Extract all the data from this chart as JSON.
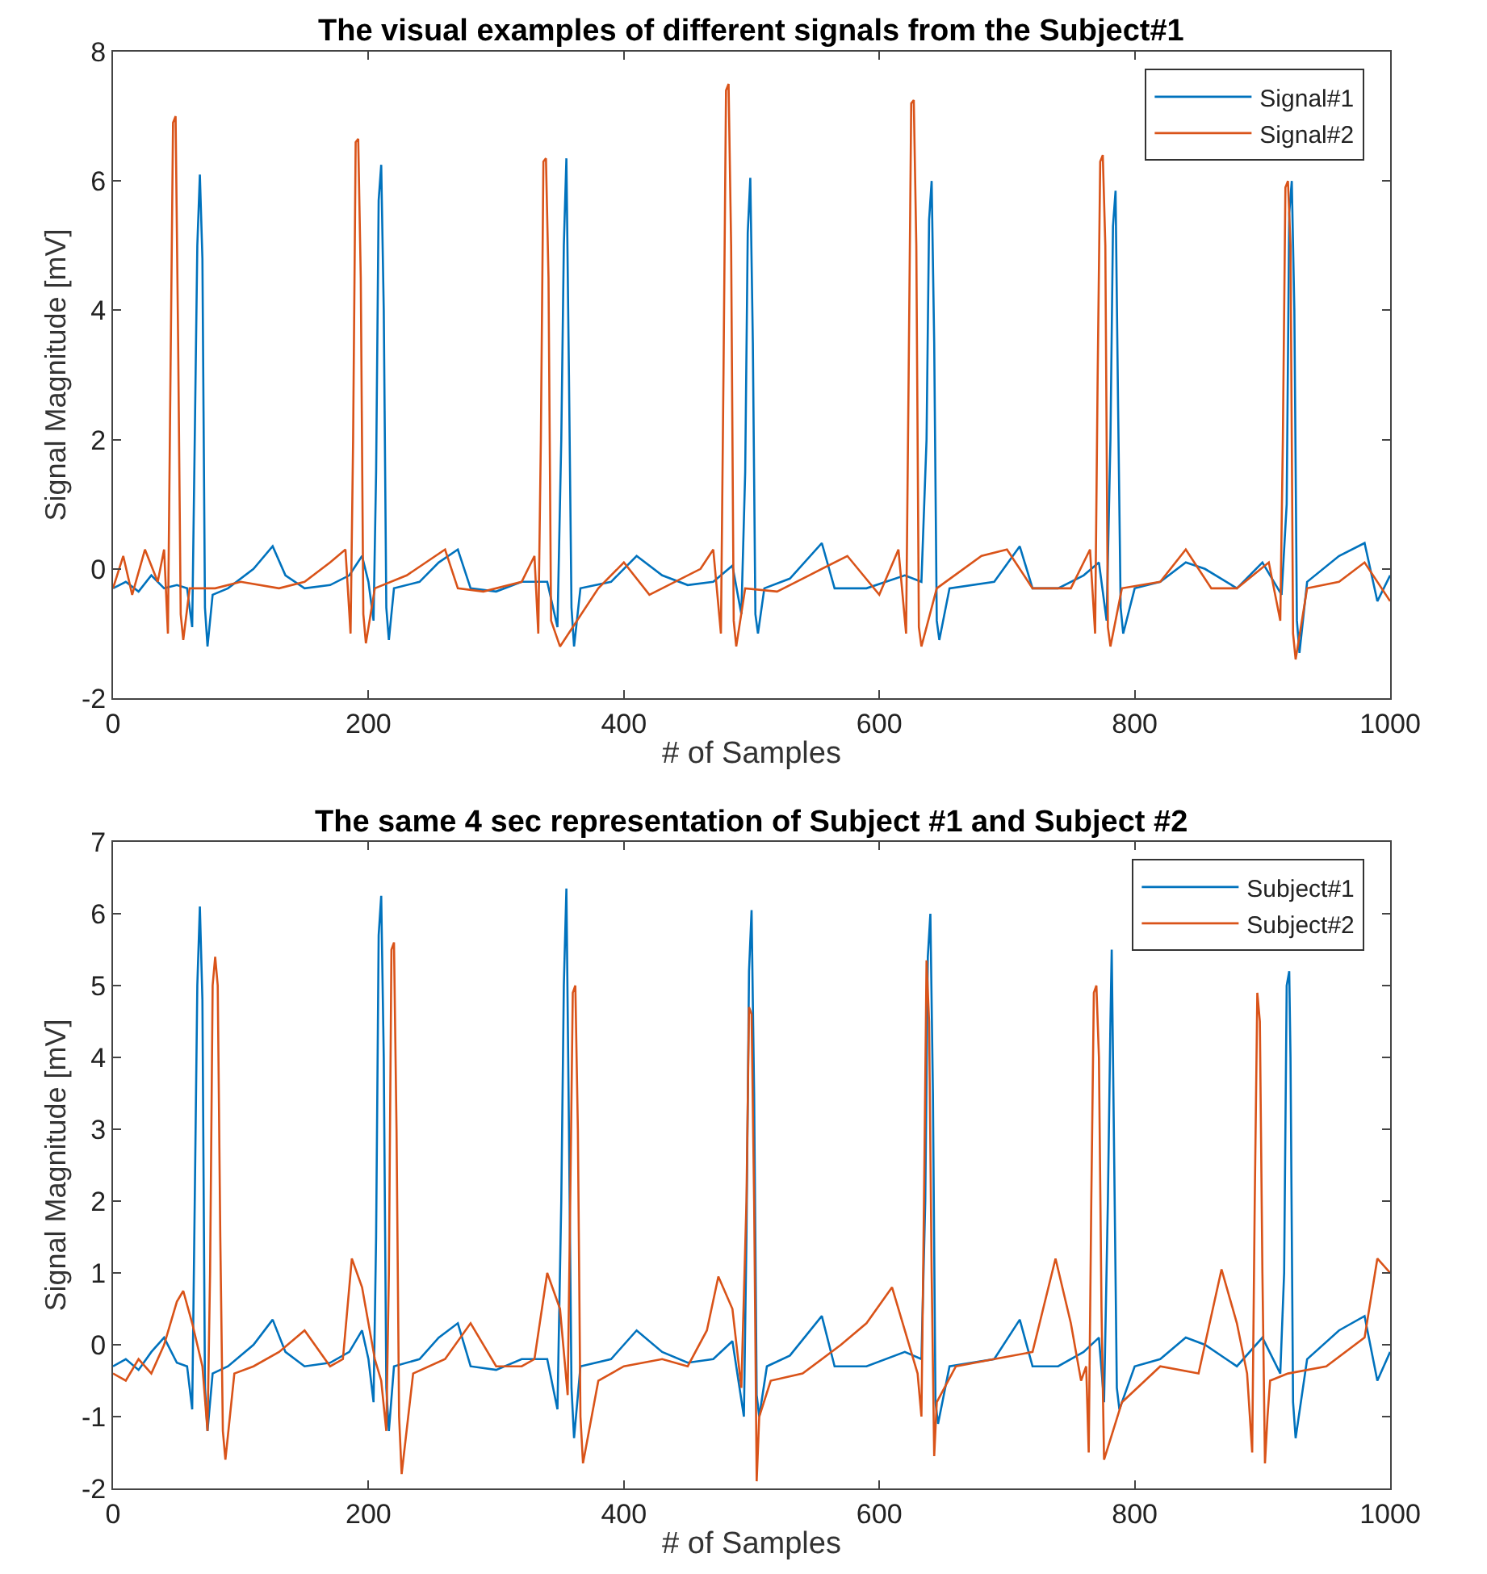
{
  "chart_data": [
    {
      "type": "line",
      "title": "The visual examples of different signals from the Subject#1",
      "xlabel": "# of Samples",
      "ylabel": "Signal Magnitude [mV]",
      "xlim": [
        0,
        1000
      ],
      "xticks": [
        0,
        200,
        400,
        600,
        800,
        1000
      ],
      "ylim": [
        -2,
        8
      ],
      "yticks": [
        -2,
        0,
        2,
        4,
        6,
        8
      ],
      "legend": "top right",
      "marker": "none",
      "line_style": "solid",
      "series": [
        {
          "name": "Signal#1",
          "color": "#0072bd",
          "x": [
            0,
            10,
            20,
            30,
            40,
            50,
            58,
            62,
            64,
            66,
            68,
            70,
            72,
            74,
            78,
            90,
            110,
            125,
            135,
            150,
            170,
            185,
            195,
            200,
            204,
            206,
            208,
            210,
            212,
            214,
            216,
            220,
            240,
            255,
            270,
            280,
            300,
            320,
            340,
            348,
            351,
            353,
            355,
            357,
            359,
            361,
            366,
            390,
            410,
            430,
            450,
            470,
            485,
            492,
            495,
            497,
            499,
            501,
            503,
            505,
            510,
            530,
            555,
            565,
            590,
            620,
            633,
            637,
            639,
            641,
            643,
            645,
            647,
            655,
            690,
            710,
            720,
            740,
            760,
            772,
            778,
            781,
            783,
            785,
            787,
            789,
            791,
            800,
            820,
            840,
            855,
            880,
            900,
            915,
            919,
            921,
            923,
            925,
            927,
            929,
            935,
            960,
            980,
            990,
            1000
          ],
          "values": [
            -0.3,
            -0.2,
            -0.35,
            -0.1,
            -0.3,
            -0.25,
            -0.3,
            -0.9,
            2,
            5,
            6.1,
            4.8,
            -0.6,
            -1.2,
            -0.4,
            -0.3,
            0.0,
            0.35,
            -0.1,
            -0.3,
            -0.25,
            -0.1,
            0.2,
            -0.2,
            -0.8,
            1.5,
            5.7,
            6.25,
            4.0,
            -0.6,
            -1.1,
            -0.3,
            -0.2,
            0.1,
            0.3,
            -0.3,
            -0.35,
            -0.2,
            -0.2,
            -0.9,
            2,
            5,
            6.35,
            3.0,
            -0.6,
            -1.2,
            -0.3,
            -0.2,
            0.2,
            -0.1,
            -0.25,
            -0.2,
            0.05,
            -0.7,
            1.5,
            5.2,
            6.05,
            3.5,
            -0.7,
            -1.0,
            -0.3,
            -0.15,
            0.4,
            -0.3,
            -0.3,
            -0.1,
            -0.2,
            2,
            5.4,
            6.0,
            3.5,
            -0.8,
            -1.1,
            -0.3,
            -0.2,
            0.35,
            -0.3,
            -0.3,
            -0.1,
            0.1,
            -0.8,
            2,
            5.3,
            5.85,
            2.5,
            -0.6,
            -1.0,
            -0.3,
            -0.2,
            0.1,
            0.0,
            -0.3,
            0.1,
            -0.4,
            1,
            5.5,
            6.0,
            4.0,
            -0.8,
            -1.3,
            -0.2,
            0.2,
            0.4,
            -0.5,
            -0.1
          ]
        },
        {
          "name": "Signal#2",
          "color": "#d95319",
          "x": [
            0,
            8,
            15,
            25,
            35,
            40,
            43,
            45,
            47,
            49,
            51,
            53,
            55,
            60,
            80,
            100,
            130,
            150,
            170,
            182,
            186,
            188,
            190,
            192,
            194,
            196,
            198,
            205,
            230,
            260,
            270,
            290,
            320,
            330,
            333,
            335,
            337,
            339,
            341,
            343,
            350,
            380,
            400,
            420,
            460,
            470,
            476,
            478,
            480,
            482,
            484,
            486,
            488,
            495,
            520,
            545,
            575,
            600,
            615,
            621,
            623,
            625,
            627,
            629,
            631,
            633,
            645,
            680,
            700,
            720,
            750,
            765,
            769,
            771,
            773,
            775,
            777,
            779,
            781,
            790,
            820,
            840,
            860,
            880,
            905,
            914,
            916,
            918,
            920,
            922,
            924,
            926,
            935,
            960,
            980,
            1000
          ],
          "values": [
            -0.3,
            0.2,
            -0.4,
            0.3,
            -0.2,
            0.3,
            -1.0,
            3,
            6.9,
            7.0,
            3.5,
            -0.7,
            -1.1,
            -0.3,
            -0.3,
            -0.2,
            -0.3,
            -0.2,
            0.1,
            0.3,
            -1.0,
            2,
            6.6,
            6.65,
            4.5,
            -0.7,
            -1.15,
            -0.3,
            -0.1,
            0.3,
            -0.3,
            -0.35,
            -0.2,
            0.2,
            -1.0,
            2,
            6.3,
            6.35,
            4.5,
            -0.8,
            -1.2,
            -0.3,
            0.1,
            -0.4,
            0.0,
            0.3,
            -1.0,
            3,
            7.4,
            7.5,
            5.0,
            -0.8,
            -1.2,
            -0.3,
            -0.35,
            -0.1,
            0.2,
            -0.4,
            0.3,
            -1.0,
            3,
            7.2,
            7.25,
            5,
            -0.9,
            -1.2,
            -0.3,
            0.2,
            0.3,
            -0.3,
            -0.3,
            0.3,
            -1.0,
            3,
            6.3,
            6.4,
            5,
            -0.9,
            -1.2,
            -0.3,
            -0.2,
            0.3,
            -0.3,
            -0.3,
            0.1,
            -0.8,
            2,
            5.9,
            6.0,
            5,
            -1.0,
            -1.4,
            -0.3,
            -0.2,
            0.1,
            -0.5
          ]
        }
      ]
    },
    {
      "type": "line",
      "title": "The same 4 sec representation of Subject #1 and Subject #2",
      "xlabel": "# of Samples",
      "ylabel": "Signal Magnitude [mV]",
      "xlim": [
        0,
        1000
      ],
      "xticks": [
        0,
        200,
        400,
        600,
        800,
        1000
      ],
      "ylim": [
        -2,
        7
      ],
      "yticks": [
        -2,
        -1,
        0,
        1,
        2,
        3,
        4,
        5,
        6,
        7
      ],
      "legend": "top right",
      "marker": "none",
      "line_style": "solid",
      "series": [
        {
          "name": "Subject#1",
          "color": "#0072bd",
          "x": [
            0,
            10,
            20,
            30,
            40,
            50,
            58,
            62,
            64,
            66,
            68,
            70,
            72,
            74,
            78,
            90,
            110,
            125,
            135,
            150,
            170,
            185,
            195,
            200,
            204,
            206,
            208,
            210,
            212,
            214,
            216,
            220,
            240,
            255,
            270,
            280,
            300,
            320,
            340,
            348,
            351,
            353,
            355,
            357,
            359,
            361,
            366,
            390,
            410,
            430,
            450,
            470,
            485,
            494,
            496,
            498,
            500,
            502,
            504,
            506,
            512,
            530,
            555,
            565,
            590,
            620,
            633,
            636,
            638,
            640,
            642,
            644,
            646,
            655,
            690,
            710,
            720,
            740,
            760,
            772,
            776,
            779,
            781,
            782,
            784,
            786,
            788,
            800,
            820,
            840,
            855,
            880,
            900,
            914,
            917,
            919,
            921,
            922,
            924,
            926,
            935,
            960,
            980,
            990,
            1000
          ],
          "values": [
            -0.3,
            -0.2,
            -0.35,
            -0.1,
            0.1,
            -0.25,
            -0.3,
            -0.9,
            2,
            5,
            6.1,
            4.8,
            -0.6,
            -1.2,
            -0.4,
            -0.3,
            0.0,
            0.35,
            -0.1,
            -0.3,
            -0.25,
            -0.1,
            0.2,
            -0.2,
            -0.8,
            1.5,
            5.7,
            6.25,
            4.0,
            -0.6,
            -1.2,
            -0.3,
            -0.2,
            0.1,
            0.3,
            -0.3,
            -0.35,
            -0.2,
            -0.2,
            -0.9,
            2,
            5,
            6.35,
            3.0,
            -0.6,
            -1.3,
            -0.3,
            -0.2,
            0.2,
            -0.1,
            -0.25,
            -0.2,
            0.05,
            -1.0,
            1.5,
            5.2,
            6.05,
            3.5,
            -0.7,
            -1.0,
            -0.3,
            -0.15,
            0.4,
            -0.3,
            -0.3,
            -0.1,
            -0.2,
            2,
            5.4,
            6.0,
            3.5,
            -0.8,
            -1.1,
            -0.3,
            -0.2,
            0.35,
            -0.3,
            -0.3,
            -0.1,
            0.1,
            -0.8,
            2,
            4.5,
            5.5,
            2.5,
            -0.6,
            -0.9,
            -0.3,
            -0.2,
            0.1,
            0.0,
            -0.3,
            0.1,
            -0.4,
            1,
            5.0,
            5.2,
            4.0,
            -0.8,
            -1.3,
            -0.2,
            0.2,
            0.4,
            -0.5,
            -0.1
          ]
        },
        {
          "name": "Subject#2",
          "color": "#d95319",
          "x": [
            0,
            10,
            20,
            30,
            40,
            50,
            55,
            62,
            70,
            74,
            76,
            78,
            80,
            82,
            84,
            86,
            88,
            95,
            110,
            130,
            150,
            170,
            180,
            187,
            195,
            205,
            210,
            214,
            216,
            218,
            220,
            222,
            224,
            226,
            235,
            260,
            280,
            300,
            320,
            330,
            340,
            350,
            356,
            358,
            360,
            362,
            364,
            366,
            368,
            380,
            400,
            430,
            450,
            465,
            474,
            485,
            492,
            496,
            498,
            500,
            502,
            504,
            506,
            515,
            540,
            570,
            590,
            610,
            620,
            630,
            633,
            635,
            637,
            639,
            641,
            643,
            645,
            660,
            690,
            720,
            738,
            750,
            758,
            762,
            764,
            766,
            768,
            770,
            772,
            774,
            776,
            790,
            820,
            850,
            868,
            880,
            888,
            892,
            894,
            896,
            898,
            900,
            902,
            904,
            906,
            920,
            950,
            980,
            990,
            1000
          ],
          "values": [
            -0.4,
            -0.5,
            -0.2,
            -0.4,
            0.0,
            0.6,
            0.75,
            0.3,
            -0.3,
            -1.2,
            1,
            5,
            5.4,
            5.0,
            1.5,
            -1.2,
            -1.6,
            -0.4,
            -0.3,
            -0.1,
            0.2,
            -0.3,
            -0.2,
            1.2,
            0.8,
            -0.2,
            -0.5,
            -1.2,
            1,
            5.5,
            5.6,
            3,
            -1.0,
            -1.8,
            -0.4,
            -0.2,
            0.3,
            -0.3,
            -0.3,
            -0.2,
            1.0,
            0.5,
            -0.7,
            2,
            4.9,
            5.0,
            3,
            -1.0,
            -1.65,
            -0.5,
            -0.3,
            -0.2,
            -0.3,
            0.2,
            0.95,
            0.5,
            -0.6,
            2,
            4.7,
            4.6,
            2,
            -1.9,
            -1.0,
            -0.5,
            -0.4,
            0.0,
            0.3,
            0.8,
            0.2,
            -0.4,
            -1.0,
            2,
            5.35,
            4.5,
            1,
            -1.55,
            -0.8,
            -0.3,
            -0.2,
            -0.1,
            1.2,
            0.3,
            -0.5,
            -0.3,
            -1.5,
            2,
            4.9,
            5.0,
            4,
            0.5,
            -1.6,
            -0.8,
            -0.3,
            -0.4,
            1.05,
            0.3,
            -0.4,
            -1.5,
            2,
            4.9,
            4.5,
            1,
            -1.65,
            -1.0,
            -0.5,
            -0.4,
            -0.3,
            0.1,
            1.2,
            1.0
          ]
        }
      ]
    }
  ]
}
